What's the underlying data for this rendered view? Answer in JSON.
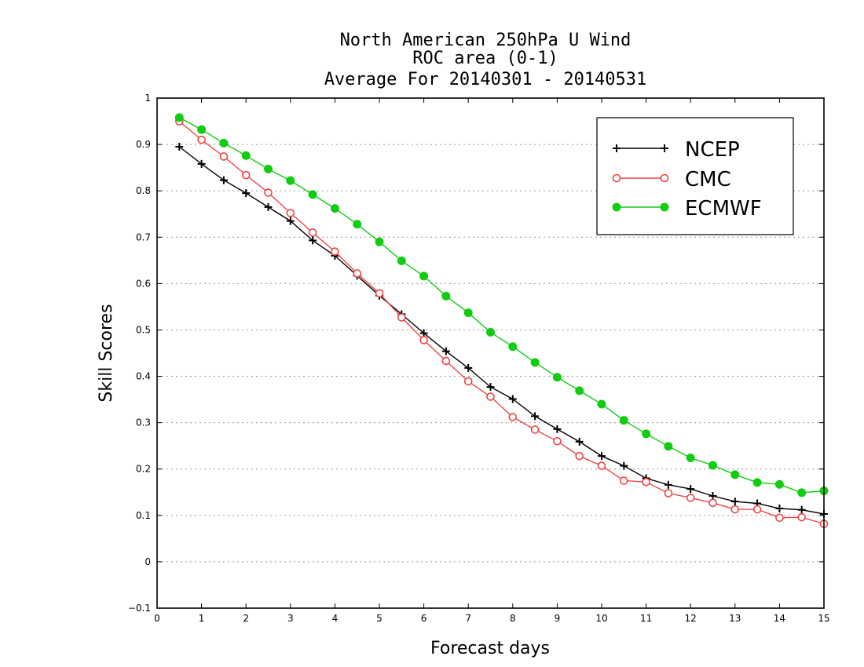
{
  "chart_data": {
    "type": "line",
    "title_lines": [
      "North American 250hPa U Wind",
      "ROC area (0-1)",
      "Average For 20140301 - 20140531"
    ],
    "xlabel": "Forecast days",
    "ylabel": "Skill Scores",
    "xlim": [
      0,
      15
    ],
    "ylim": [
      -0.1,
      1
    ],
    "x_ticks": [
      "0",
      "1",
      "2",
      "3",
      "4",
      "5",
      "6",
      "7",
      "8",
      "9",
      "10",
      "11",
      "12",
      "13",
      "14",
      "15"
    ],
    "y_ticks": [
      "−0.1",
      "0",
      "0.1",
      "0.2",
      "0.3",
      "0.4",
      "0.5",
      "0.6",
      "0.7",
      "0.8",
      "0.9",
      "1"
    ],
    "grid": true,
    "legend_position": "top-right",
    "x": [
      0.5,
      1,
      1.5,
      2,
      2.5,
      3,
      3.5,
      4,
      4.5,
      5,
      5.5,
      6,
      6.5,
      7,
      7.5,
      8,
      8.5,
      9,
      9.5,
      10,
      10.5,
      11,
      11.5,
      12,
      12.5,
      13,
      13.5,
      14,
      14.5,
      15
    ],
    "series": [
      {
        "name": "NCEP",
        "color": "#000000",
        "marker": "plus",
        "values": [
          0.895,
          0.858,
          0.823,
          0.795,
          0.765,
          0.735,
          0.693,
          0.66,
          0.617,
          0.574,
          0.534,
          0.493,
          0.454,
          0.418,
          0.377,
          0.351,
          0.314,
          0.286,
          0.259,
          0.228,
          0.207,
          0.18,
          0.166,
          0.157,
          0.142,
          0.13,
          0.126,
          0.115,
          0.112,
          0.103
        ]
      },
      {
        "name": "CMC",
        "color": "#ee4444",
        "marker": "open-circle",
        "values": [
          0.95,
          0.91,
          0.874,
          0.834,
          0.796,
          0.752,
          0.71,
          0.669,
          0.622,
          0.579,
          0.527,
          0.478,
          0.433,
          0.389,
          0.356,
          0.312,
          0.285,
          0.26,
          0.228,
          0.207,
          0.175,
          0.172,
          0.148,
          0.138,
          0.127,
          0.113,
          0.113,
          0.095,
          0.096,
          0.082
        ]
      },
      {
        "name": "ECMWF",
        "color": "#11cc11",
        "marker": "filled-circle",
        "values": [
          0.958,
          0.932,
          0.903,
          0.876,
          0.847,
          0.822,
          0.792,
          0.762,
          0.728,
          0.69,
          0.649,
          0.616,
          0.573,
          0.537,
          0.495,
          0.464,
          0.43,
          0.398,
          0.369,
          0.34,
          0.305,
          0.276,
          0.249,
          0.224,
          0.208,
          0.188,
          0.171,
          0.167,
          0.149,
          0.153
        ]
      }
    ]
  }
}
